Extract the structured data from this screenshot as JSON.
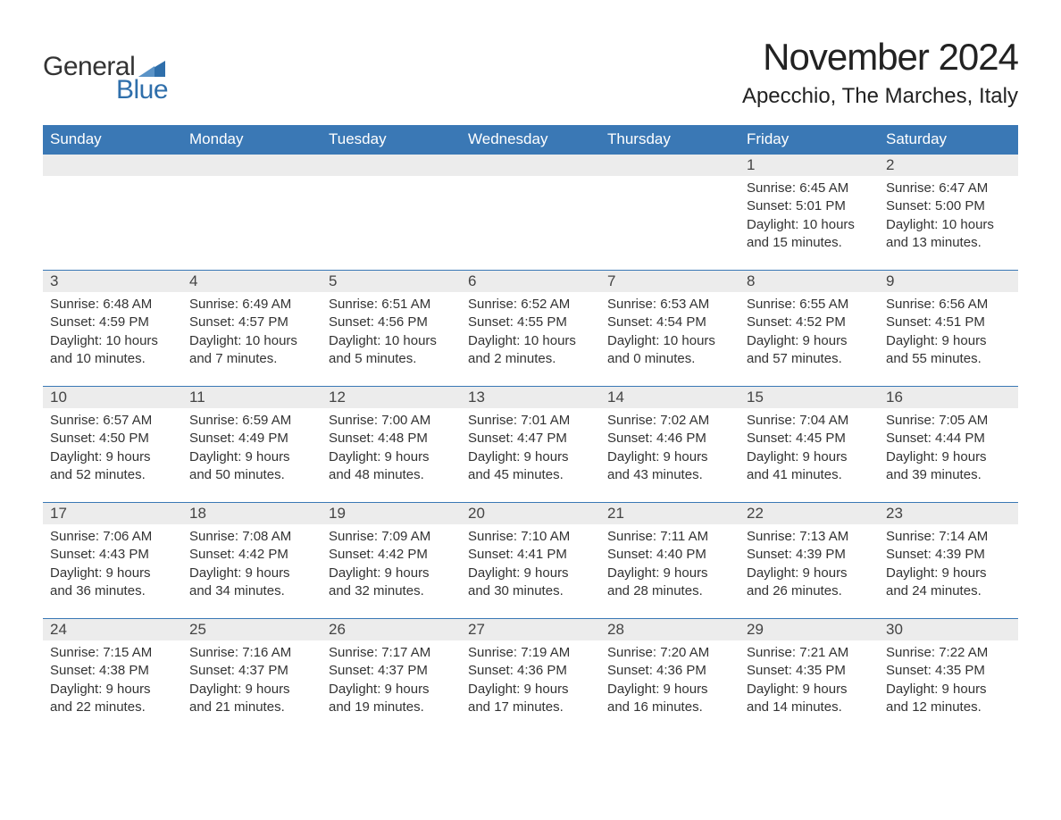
{
  "logo": {
    "text_general": "General",
    "text_blue": "Blue",
    "flag_color": "#2f6fab",
    "general_color": "#333333",
    "blue_color": "#2f6fab"
  },
  "title": "November 2024",
  "location": "Apecchio, The Marches, Italy",
  "colors": {
    "header_bg": "#3a78b5",
    "header_text": "#ffffff",
    "row_border": "#3a78b5",
    "daynum_bg": "#ececec",
    "body_text": "#333333",
    "page_bg": "#ffffff"
  },
  "columns": [
    "Sunday",
    "Monday",
    "Tuesday",
    "Wednesday",
    "Thursday",
    "Friday",
    "Saturday"
  ],
  "weeks": [
    [
      null,
      null,
      null,
      null,
      null,
      {
        "n": "1",
        "sr": "Sunrise: 6:45 AM",
        "ss": "Sunset: 5:01 PM",
        "d1": "Daylight: 10 hours",
        "d2": "and 15 minutes."
      },
      {
        "n": "2",
        "sr": "Sunrise: 6:47 AM",
        "ss": "Sunset: 5:00 PM",
        "d1": "Daylight: 10 hours",
        "d2": "and 13 minutes."
      }
    ],
    [
      {
        "n": "3",
        "sr": "Sunrise: 6:48 AM",
        "ss": "Sunset: 4:59 PM",
        "d1": "Daylight: 10 hours",
        "d2": "and 10 minutes."
      },
      {
        "n": "4",
        "sr": "Sunrise: 6:49 AM",
        "ss": "Sunset: 4:57 PM",
        "d1": "Daylight: 10 hours",
        "d2": "and 7 minutes."
      },
      {
        "n": "5",
        "sr": "Sunrise: 6:51 AM",
        "ss": "Sunset: 4:56 PM",
        "d1": "Daylight: 10 hours",
        "d2": "and 5 minutes."
      },
      {
        "n": "6",
        "sr": "Sunrise: 6:52 AM",
        "ss": "Sunset: 4:55 PM",
        "d1": "Daylight: 10 hours",
        "d2": "and 2 minutes."
      },
      {
        "n": "7",
        "sr": "Sunrise: 6:53 AM",
        "ss": "Sunset: 4:54 PM",
        "d1": "Daylight: 10 hours",
        "d2": "and 0 minutes."
      },
      {
        "n": "8",
        "sr": "Sunrise: 6:55 AM",
        "ss": "Sunset: 4:52 PM",
        "d1": "Daylight: 9 hours",
        "d2": "and 57 minutes."
      },
      {
        "n": "9",
        "sr": "Sunrise: 6:56 AM",
        "ss": "Sunset: 4:51 PM",
        "d1": "Daylight: 9 hours",
        "d2": "and 55 minutes."
      }
    ],
    [
      {
        "n": "10",
        "sr": "Sunrise: 6:57 AM",
        "ss": "Sunset: 4:50 PM",
        "d1": "Daylight: 9 hours",
        "d2": "and 52 minutes."
      },
      {
        "n": "11",
        "sr": "Sunrise: 6:59 AM",
        "ss": "Sunset: 4:49 PM",
        "d1": "Daylight: 9 hours",
        "d2": "and 50 minutes."
      },
      {
        "n": "12",
        "sr": "Sunrise: 7:00 AM",
        "ss": "Sunset: 4:48 PM",
        "d1": "Daylight: 9 hours",
        "d2": "and 48 minutes."
      },
      {
        "n": "13",
        "sr": "Sunrise: 7:01 AM",
        "ss": "Sunset: 4:47 PM",
        "d1": "Daylight: 9 hours",
        "d2": "and 45 minutes."
      },
      {
        "n": "14",
        "sr": "Sunrise: 7:02 AM",
        "ss": "Sunset: 4:46 PM",
        "d1": "Daylight: 9 hours",
        "d2": "and 43 minutes."
      },
      {
        "n": "15",
        "sr": "Sunrise: 7:04 AM",
        "ss": "Sunset: 4:45 PM",
        "d1": "Daylight: 9 hours",
        "d2": "and 41 minutes."
      },
      {
        "n": "16",
        "sr": "Sunrise: 7:05 AM",
        "ss": "Sunset: 4:44 PM",
        "d1": "Daylight: 9 hours",
        "d2": "and 39 minutes."
      }
    ],
    [
      {
        "n": "17",
        "sr": "Sunrise: 7:06 AM",
        "ss": "Sunset: 4:43 PM",
        "d1": "Daylight: 9 hours",
        "d2": "and 36 minutes."
      },
      {
        "n": "18",
        "sr": "Sunrise: 7:08 AM",
        "ss": "Sunset: 4:42 PM",
        "d1": "Daylight: 9 hours",
        "d2": "and 34 minutes."
      },
      {
        "n": "19",
        "sr": "Sunrise: 7:09 AM",
        "ss": "Sunset: 4:42 PM",
        "d1": "Daylight: 9 hours",
        "d2": "and 32 minutes."
      },
      {
        "n": "20",
        "sr": "Sunrise: 7:10 AM",
        "ss": "Sunset: 4:41 PM",
        "d1": "Daylight: 9 hours",
        "d2": "and 30 minutes."
      },
      {
        "n": "21",
        "sr": "Sunrise: 7:11 AM",
        "ss": "Sunset: 4:40 PM",
        "d1": "Daylight: 9 hours",
        "d2": "and 28 minutes."
      },
      {
        "n": "22",
        "sr": "Sunrise: 7:13 AM",
        "ss": "Sunset: 4:39 PM",
        "d1": "Daylight: 9 hours",
        "d2": "and 26 minutes."
      },
      {
        "n": "23",
        "sr": "Sunrise: 7:14 AM",
        "ss": "Sunset: 4:39 PM",
        "d1": "Daylight: 9 hours",
        "d2": "and 24 minutes."
      }
    ],
    [
      {
        "n": "24",
        "sr": "Sunrise: 7:15 AM",
        "ss": "Sunset: 4:38 PM",
        "d1": "Daylight: 9 hours",
        "d2": "and 22 minutes."
      },
      {
        "n": "25",
        "sr": "Sunrise: 7:16 AM",
        "ss": "Sunset: 4:37 PM",
        "d1": "Daylight: 9 hours",
        "d2": "and 21 minutes."
      },
      {
        "n": "26",
        "sr": "Sunrise: 7:17 AM",
        "ss": "Sunset: 4:37 PM",
        "d1": "Daylight: 9 hours",
        "d2": "and 19 minutes."
      },
      {
        "n": "27",
        "sr": "Sunrise: 7:19 AM",
        "ss": "Sunset: 4:36 PM",
        "d1": "Daylight: 9 hours",
        "d2": "and 17 minutes."
      },
      {
        "n": "28",
        "sr": "Sunrise: 7:20 AM",
        "ss": "Sunset: 4:36 PM",
        "d1": "Daylight: 9 hours",
        "d2": "and 16 minutes."
      },
      {
        "n": "29",
        "sr": "Sunrise: 7:21 AM",
        "ss": "Sunset: 4:35 PM",
        "d1": "Daylight: 9 hours",
        "d2": "and 14 minutes."
      },
      {
        "n": "30",
        "sr": "Sunrise: 7:22 AM",
        "ss": "Sunset: 4:35 PM",
        "d1": "Daylight: 9 hours",
        "d2": "and 12 minutes."
      }
    ]
  ]
}
